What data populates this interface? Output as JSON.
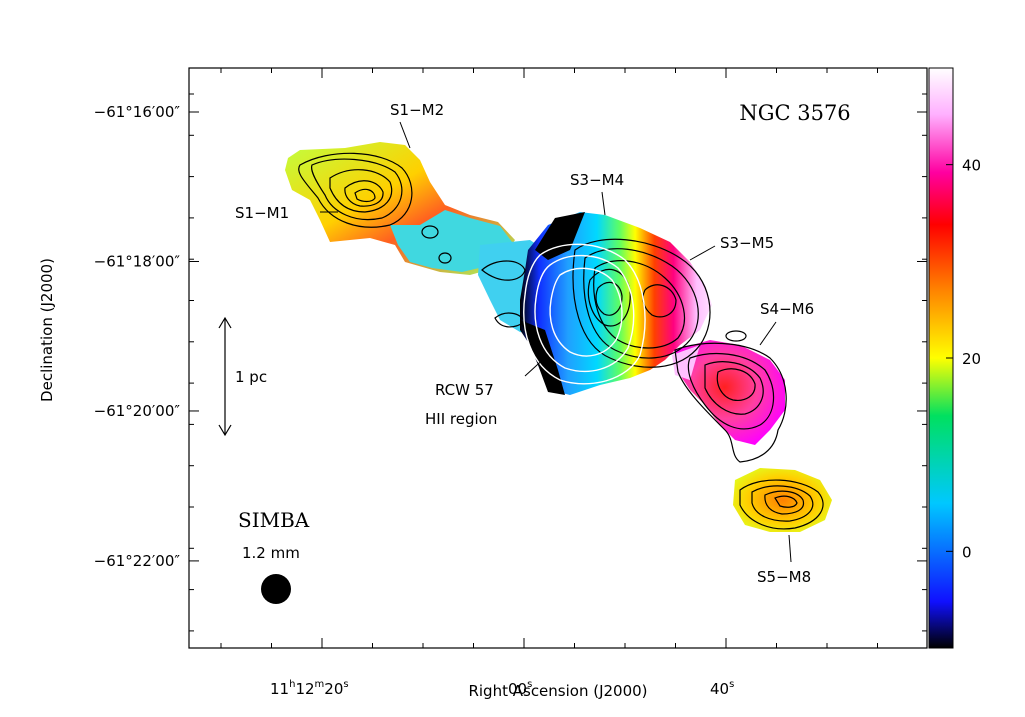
{
  "chart_data": {
    "type": "heatmap",
    "title": "NGC 3576",
    "xlabel": "Right Ascension (J2000)",
    "ylabel": "Declination (J2000)",
    "x_ticks": [
      {
        "main": "11",
        "sup1": "h",
        "mid": "12",
        "sup2": "m",
        "tail": "20",
        "sup3": "s"
      },
      {
        "main": "00",
        "sup1": "s"
      },
      {
        "main": "40",
        "sup1": "s"
      }
    ],
    "y_ticks": [
      {
        "value": -61.2667,
        "label": "−61°16′00″"
      },
      {
        "value": -61.3,
        "label": "−61°18′00″"
      },
      {
        "value": -61.3333,
        "label": "−61°20′00″"
      },
      {
        "value": -61.3667,
        "label": "−61°22′00″"
      }
    ],
    "colorbar": {
      "min": -10,
      "max": 50,
      "ticks": [
        {
          "value": 0,
          "label": "0"
        },
        {
          "value": 20,
          "label": "20"
        },
        {
          "value": 40,
          "label": "40"
        }
      ],
      "colors": [
        "#000000",
        "#1010ff",
        "#00c8ff",
        "#00e060",
        "#ffff00",
        "#ff8000",
        "#ff0000",
        "#ff00a0",
        "#ffb0ff",
        "#ffffff"
      ]
    },
    "annotations": [
      {
        "id": "S1-M1",
        "text": "S1−M1"
      },
      {
        "id": "S1-M2",
        "text": "S1−M2"
      },
      {
        "id": "S3-M4",
        "text": "S3−M4"
      },
      {
        "id": "S3-M5",
        "text": "S3−M5"
      },
      {
        "id": "S4-M6",
        "text": "S4−M6"
      },
      {
        "id": "S5-M8",
        "text": "S5−M8"
      },
      {
        "id": "RCW57",
        "text": "RCW 57"
      },
      {
        "id": "HII",
        "text": "HII region"
      }
    ],
    "scale_bar": {
      "text": "1 pc"
    },
    "instrument": {
      "name": "SIMBA",
      "wavelength": "1.2 mm"
    }
  }
}
